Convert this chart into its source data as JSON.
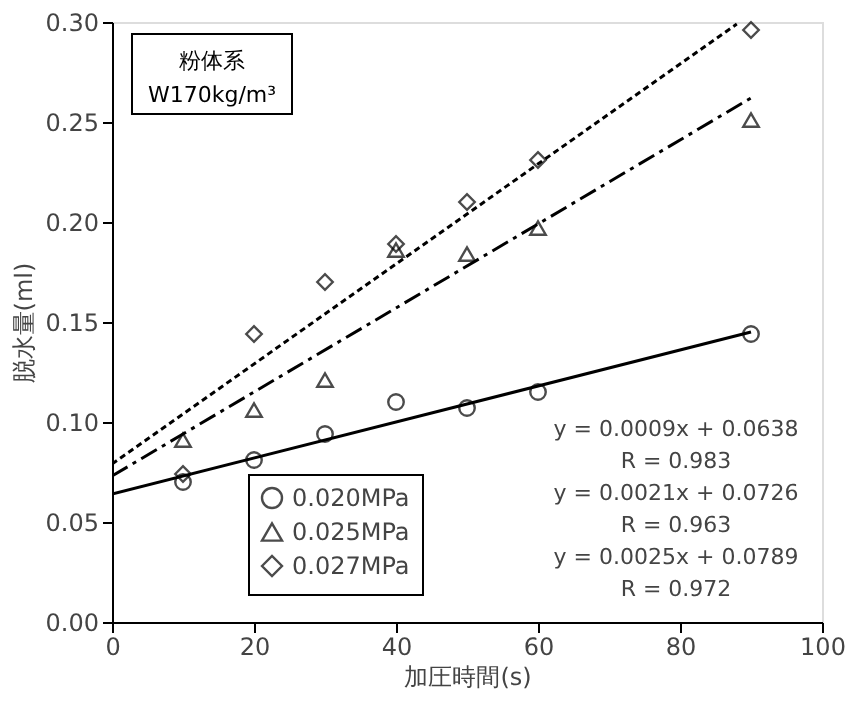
{
  "chart_data": {
    "type": "scatter",
    "xlabel": "加圧時間(s)",
    "ylabel": "脱水量(ml)",
    "xlim": [
      0,
      100
    ],
    "xticks": [
      0,
      20,
      40,
      60,
      80,
      100
    ],
    "ylim": [
      0,
      0.3
    ],
    "yticks": [
      {
        "value": 0,
        "label": "0.00"
      },
      {
        "value": 0.05,
        "label": "0.05"
      },
      {
        "value": 0.1,
        "label": "0.10"
      },
      {
        "value": 0.15,
        "label": "0.15"
      },
      {
        "value": 0.2,
        "label": "0.20"
      },
      {
        "value": 0.25,
        "label": "0.25"
      },
      {
        "value": 0.3,
        "label": "0.30"
      }
    ],
    "grid": false,
    "legend": "bottom left",
    "annotations": [
      "粉体系",
      "W170kg/m³",
      "y = 0.0009x + 0.0638",
      "R = 0.983",
      "y = 0.0021x + 0.0726",
      "R = 0.963",
      "y = 0.0025x + 0.0789",
      "R = 0.972"
    ],
    "series": [
      {
        "name": "0.020MPa",
        "marker": "circle",
        "color": "#000000",
        "x": [
          10,
          20,
          30,
          40,
          50,
          60,
          90
        ],
        "values": [
          0.07,
          0.081,
          0.094,
          0.11,
          0.107,
          0.115,
          0.144
        ]
      },
      {
        "name": "0.025MPa",
        "marker": "triangle",
        "color": "#000000",
        "x": [
          10,
          20,
          30,
          40,
          50,
          60,
          90
        ],
        "values": [
          0.091,
          0.106,
          0.121,
          0.186,
          0.184,
          0.197,
          0.251
        ]
      },
      {
        "name": "0.027MPa",
        "marker": "diamond",
        "color": "#000000",
        "x": [
          10,
          20,
          30,
          40,
          50,
          60,
          90
        ],
        "values": [
          0.074,
          0.144,
          0.17,
          0.189,
          0.21,
          0.231,
          0.296
        ]
      },
      {
        "type": "line",
        "line_style": "solid",
        "color": "#000000",
        "x": [
          0,
          90
        ],
        "values": [
          0.064,
          0.145
        ]
      },
      {
        "type": "line",
        "line_style": "dashed",
        "color": "#000000",
        "x": [
          0,
          90
        ],
        "values": [
          0.073,
          0.262
        ]
      },
      {
        "type": "line",
        "line_style": "dotted",
        "color": "#000000",
        "x": [
          0,
          88
        ],
        "values": [
          0.079,
          0.299
        ]
      }
    ]
  }
}
